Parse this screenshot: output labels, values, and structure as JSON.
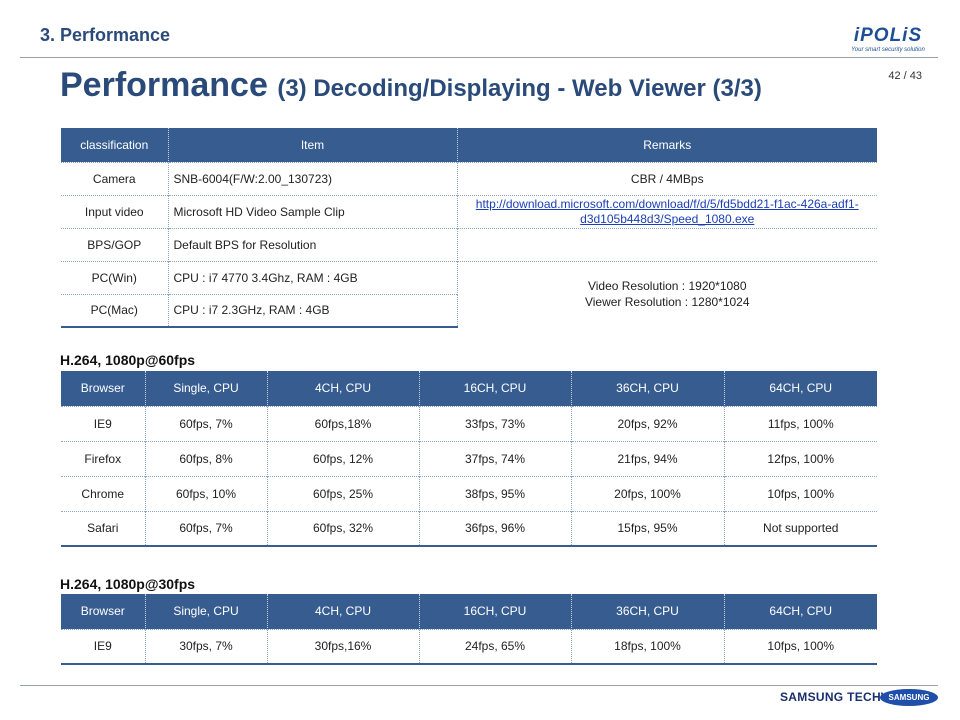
{
  "header": {
    "section_title": "3. Performance",
    "logo_text": "iPOLiS",
    "logo_tagline": "Your smart security solution",
    "page_number": "42 / 43"
  },
  "title": {
    "main": "Performance",
    "sub": "(3) Decoding/Displaying  - Web Viewer (3/3)"
  },
  "spec_table": {
    "headers": [
      "classification",
      "Item",
      "Remarks"
    ],
    "rows": [
      {
        "classification": "Camera",
        "item": "SNB-6004(F/W:2.00_130723)",
        "remarks": "CBR / 4MBps"
      },
      {
        "classification": "Input video",
        "item": "Microsoft  HD  Video  Sample  Clip",
        "remarks_link": "http://download.microsoft.com/download/f/d/5/fd5bdd21-f1ac-426a-adf1-d3d105b448d3/Speed_1080.exe"
      },
      {
        "classification": "BPS/GOP",
        "item": "Default  BPS  for  Resolution",
        "remarks": ""
      },
      {
        "classification": "PC(Win)",
        "item": "CPU  :  i7  4770  3.4Ghz,  RAM : 4GB"
      },
      {
        "classification": "PC(Mac)",
        "item": "CPU  :  i7  2.3GHz,  RAM : 4GB"
      }
    ],
    "pc_remarks": [
      "Video  Resolution : 1920*1080",
      "Viewer  Resolution : 1280*1024"
    ]
  },
  "perf_60": {
    "heading": "H.264, 1080p@60fps",
    "headers": [
      "Browser",
      "Single, CPU",
      "4CH, CPU",
      "16CH, CPU",
      "36CH, CPU",
      "64CH, CPU"
    ],
    "rows": [
      [
        "IE9",
        "60fps, 7%",
        "60fps,18%",
        "33fps, 73%",
        "20fps, 92%",
        "11fps, 100%"
      ],
      [
        "Firefox",
        "60fps, 8%",
        "60fps, 12%",
        "37fps, 74%",
        "21fps, 94%",
        "12fps, 100%"
      ],
      [
        "Chrome",
        "60fps, 10%",
        "60fps, 25%",
        "38fps, 95%",
        "20fps, 100%",
        "10fps, 100%"
      ],
      [
        "Safari",
        "60fps, 7%",
        "60fps, 32%",
        "36fps, 96%",
        "15fps, 95%",
        "Not supported"
      ]
    ]
  },
  "perf_30": {
    "heading": "H.264, 1080p@30fps",
    "headers": [
      "Browser",
      "Single, CPU",
      "4CH, CPU",
      "16CH, CPU",
      "36CH, CPU",
      "64CH, CPU"
    ],
    "rows": [
      [
        "IE9",
        "30fps, 7%",
        "30fps,16%",
        "24fps, 65%",
        "18fps, 100%",
        "10fps, 100%"
      ]
    ]
  },
  "footer": {
    "brand": "SAMSUNG TECHWIN",
    "samsung_logo": "SAMSUNG"
  }
}
